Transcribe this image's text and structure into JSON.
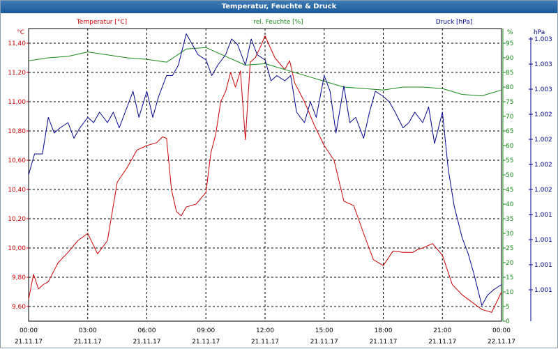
{
  "window": {
    "title": "Temperatur, Feuchte & Druck"
  },
  "chart_data": {
    "type": "line",
    "title": "Temperatur, Feuchte & Druck",
    "grid": true,
    "x": {
      "range": [
        "21.11.17 00:00",
        "22.11.17 00:00"
      ],
      "ticks": [
        {
          "time": "00:00",
          "date": "21.11.17"
        },
        {
          "time": "03:00",
          "date": "21.11.17"
        },
        {
          "time": "06:00",
          "date": "21.11.17"
        },
        {
          "time": "09:00",
          "date": "21.11.17"
        },
        {
          "time": "12:00",
          "date": "21.11.17"
        },
        {
          "time": "15:00",
          "date": "21.11.17"
        },
        {
          "time": "18:00",
          "date": "21.11.17"
        },
        {
          "time": "21:00",
          "date": "21.11.17"
        },
        {
          "time": "00:00",
          "date": "22.11.17"
        }
      ]
    },
    "axes": {
      "temperature": {
        "unit": "°C",
        "ylim": [
          9.5,
          11.5
        ],
        "ticks": [
          "9,60",
          "9,80",
          "10,00",
          "10,20",
          "10,40",
          "10,60",
          "10,80",
          "11,00",
          "11,20",
          "11,40"
        ]
      },
      "humidity": {
        "unit": "%",
        "ylim": [
          0,
          100
        ],
        "ticks": [
          "0",
          "5",
          "10",
          "15",
          "20",
          "25",
          "30",
          "35",
          "40",
          "45",
          "50",
          "55",
          "60",
          "65",
          "70",
          "75",
          "80",
          "85",
          "90",
          "95"
        ]
      },
      "pressure": {
        "unit": "hPa",
        "ylim": [
          1000.6,
          1003.4
        ],
        "ticks": [
          "1.001",
          "1.001",
          "1.001",
          "1.001",
          "1.002",
          "1.002",
          "1.002",
          "1.002",
          "1.003",
          "1.003",
          "1.003"
        ]
      }
    },
    "series": [
      {
        "name": "Temperatur [°C]",
        "axis": "temperature",
        "color": "#cc0000",
        "hours": [
          0,
          0.25,
          0.5,
          0.75,
          1,
          1.5,
          2,
          2.5,
          3,
          3.5,
          4,
          4.5,
          5,
          5.5,
          6,
          6.5,
          6.8,
          7,
          7.25,
          7.5,
          7.75,
          8,
          8.5,
          9,
          9.25,
          9.5,
          9.75,
          10,
          10.25,
          10.5,
          10.75,
          11,
          11.25,
          11.5,
          11.75,
          12,
          12.5,
          13,
          13.25,
          13.5,
          14,
          14.5,
          15,
          15.5,
          16,
          16.5,
          17,
          17.5,
          18,
          18.5,
          19,
          19.5,
          19.75,
          20,
          20.5,
          21,
          21.5,
          22,
          22.5,
          23,
          23.5,
          24
        ],
        "values": [
          9.65,
          9.82,
          9.72,
          9.75,
          9.77,
          9.9,
          9.97,
          10.05,
          10.1,
          9.96,
          10.05,
          10.45,
          10.55,
          10.67,
          10.7,
          10.72,
          10.76,
          10.75,
          10.4,
          10.25,
          10.22,
          10.28,
          10.3,
          10.38,
          10.65,
          10.78,
          11.0,
          11.07,
          11.2,
          11.1,
          11.21,
          10.74,
          11.27,
          11.3,
          11.37,
          11.45,
          11.3,
          11.22,
          11.28,
          11.13,
          11.0,
          10.84,
          10.7,
          10.6,
          10.32,
          10.29,
          10.1,
          9.92,
          9.88,
          9.98,
          9.97,
          9.97,
          9.99,
          10.0,
          10.03,
          9.95,
          9.75,
          9.68,
          9.63,
          9.58,
          9.56,
          9.7
        ]
      },
      {
        "name": "rel. Feuchte [%]",
        "axis": "humidity",
        "color": "#138a13",
        "hours": [
          0,
          1,
          2,
          3,
          4,
          5,
          6,
          7,
          8,
          9,
          10,
          11,
          12,
          13,
          14,
          15,
          16,
          17,
          18,
          19,
          20,
          21,
          22,
          23,
          24
        ],
        "values": [
          89,
          90,
          90.5,
          92,
          91,
          90,
          89.5,
          88.5,
          93,
          93.5,
          90.5,
          87.5,
          88,
          86,
          84,
          82,
          80,
          79.5,
          79,
          80,
          80,
          79.5,
          77.5,
          77,
          79
        ]
      },
      {
        "name": "Druck [hPa]",
        "axis": "pressure",
        "color": "#00008b",
        "hours": [
          0,
          0.3,
          0.7,
          1,
          1.3,
          1.6,
          2,
          2.3,
          2.6,
          3,
          3.3,
          3.6,
          4,
          4.3,
          4.6,
          5,
          5.3,
          5.6,
          6,
          6.3,
          6.6,
          7,
          7.3,
          7.6,
          8,
          8.3,
          8.6,
          9,
          9.3,
          9.6,
          10,
          10.3,
          10.6,
          11,
          11.3,
          11.6,
          12,
          12.3,
          12.6,
          13,
          13.3,
          13.6,
          14,
          14.3,
          14.6,
          15,
          15.3,
          15.6,
          16,
          16.3,
          16.6,
          17,
          17.3,
          17.6,
          18,
          18.3,
          18.6,
          19,
          19.3,
          19.6,
          20,
          20.3,
          20.6,
          21,
          21.3,
          21.6,
          22,
          22.3,
          22.6,
          23,
          23.3,
          23.6,
          24
        ],
        "values": [
          1002.0,
          1002.2,
          1002.2,
          1002.55,
          1002.4,
          1002.45,
          1002.5,
          1002.35,
          1002.45,
          1002.55,
          1002.5,
          1002.6,
          1002.5,
          1002.6,
          1002.45,
          1002.65,
          1002.8,
          1002.55,
          1002.8,
          1002.55,
          1002.75,
          1002.95,
          1002.95,
          1003.05,
          1003.35,
          1003.25,
          1003.15,
          1003.1,
          1002.95,
          1003.05,
          1003.15,
          1003.3,
          1003.25,
          1003.05,
          1003.3,
          1003.15,
          1003.1,
          1002.9,
          1002.95,
          1002.9,
          1002.95,
          1002.6,
          1002.5,
          1002.7,
          1002.55,
          1002.95,
          1002.8,
          1002.4,
          1002.85,
          1002.5,
          1002.55,
          1002.35,
          1002.6,
          1002.8,
          1002.75,
          1002.7,
          1002.6,
          1002.45,
          1002.5,
          1002.6,
          1002.5,
          1002.65,
          1002.3,
          1002.6,
          1002.05,
          1001.7,
          1001.4,
          1001.25,
          1001.05,
          1000.75,
          1000.85,
          1000.9,
          1000.95
        ]
      }
    ]
  }
}
